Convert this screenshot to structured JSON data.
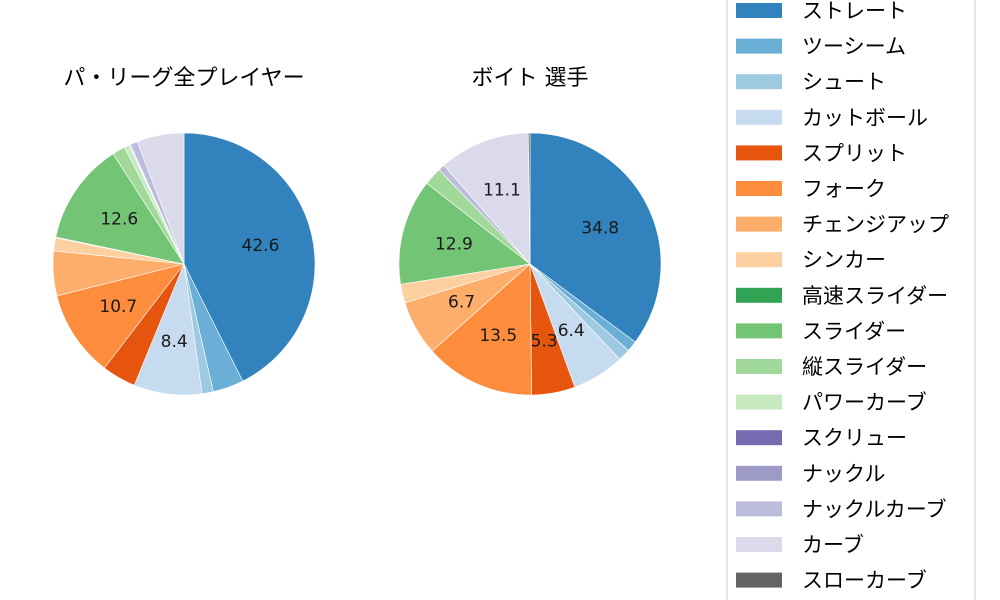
{
  "legend": {
    "items": [
      {
        "name": "ストレート",
        "color": "#3182bd"
      },
      {
        "name": "ツーシーム",
        "color": "#6baed6"
      },
      {
        "name": "シュート",
        "color": "#9ecae1"
      },
      {
        "name": "カットボール",
        "color": "#c6dbef"
      },
      {
        "name": "スプリット",
        "color": "#e6550d"
      },
      {
        "name": "フォーク",
        "color": "#fd8d3c"
      },
      {
        "name": "チェンジアップ",
        "color": "#fdae6b"
      },
      {
        "name": "シンカー",
        "color": "#fdd0a2"
      },
      {
        "name": "高速スライダー",
        "color": "#31a354"
      },
      {
        "name": "スライダー",
        "color": "#74c476"
      },
      {
        "name": "縦スライダー",
        "color": "#a1d99b"
      },
      {
        "name": "パワーカーブ",
        "color": "#c7e9c0"
      },
      {
        "name": "スクリュー",
        "color": "#756bb1"
      },
      {
        "name": "ナックル",
        "color": "#9e9ac8"
      },
      {
        "name": "ナックルカーブ",
        "color": "#bcbddc"
      },
      {
        "name": "カーブ",
        "color": "#dadaeb"
      },
      {
        "name": "スローカーブ",
        "color": "#636363"
      }
    ]
  },
  "chart_data": [
    {
      "type": "pie",
      "title": "パ・リーグ全プレイヤー",
      "start_angle": "top, clockwise",
      "slices": [
        {
          "category": "ストレート",
          "value": 42.6,
          "label": "42.6"
        },
        {
          "category": "ツーシーム",
          "value": 3.8,
          "label": ""
        },
        {
          "category": "シュート",
          "value": 1.4,
          "label": ""
        },
        {
          "category": "カットボール",
          "value": 8.4,
          "label": "8.4"
        },
        {
          "category": "スプリット",
          "value": 4.2,
          "label": ""
        },
        {
          "category": "フォーク",
          "value": 10.7,
          "label": "10.7"
        },
        {
          "category": "チェンジアップ",
          "value": 5.5,
          "label": ""
        },
        {
          "category": "シンカー",
          "value": 1.6,
          "label": ""
        },
        {
          "category": "高速スライダー",
          "value": 0.1,
          "label": ""
        },
        {
          "category": "スライダー",
          "value": 12.6,
          "label": "12.6"
        },
        {
          "category": "縦スライダー",
          "value": 1.6,
          "label": ""
        },
        {
          "category": "パワーカーブ",
          "value": 0.6,
          "label": ""
        },
        {
          "category": "スクリュー",
          "value": 0.1,
          "label": ""
        },
        {
          "category": "ナックル",
          "value": 0.1,
          "label": ""
        },
        {
          "category": "ナックルカーブ",
          "value": 0.9,
          "label": ""
        },
        {
          "category": "カーブ",
          "value": 5.8,
          "label": ""
        },
        {
          "category": "スローカーブ",
          "value": 0.0,
          "label": ""
        }
      ]
    },
    {
      "type": "pie",
      "title": "ボイト 選手",
      "start_angle": "top, clockwise",
      "slices": [
        {
          "category": "ストレート",
          "value": 34.8,
          "label": "34.8"
        },
        {
          "category": "ツーシーム",
          "value": 1.3,
          "label": ""
        },
        {
          "category": "シュート",
          "value": 1.5,
          "label": ""
        },
        {
          "category": "カットボール",
          "value": 6.4,
          "label": "6.4"
        },
        {
          "category": "スプリット",
          "value": 5.3,
          "label": "5.3"
        },
        {
          "category": "フォーク",
          "value": 13.5,
          "label": "13.5"
        },
        {
          "category": "チェンジアップ",
          "value": 6.7,
          "label": "6.7"
        },
        {
          "category": "シンカー",
          "value": 2.3,
          "label": ""
        },
        {
          "category": "高速スライダー",
          "value": 0.0,
          "label": ""
        },
        {
          "category": "スライダー",
          "value": 12.9,
          "label": "12.9"
        },
        {
          "category": "縦スライダー",
          "value": 2.2,
          "label": ""
        },
        {
          "category": "パワーカーブ",
          "value": 0.0,
          "label": ""
        },
        {
          "category": "スクリュー",
          "value": 0.0,
          "label": ""
        },
        {
          "category": "ナックル",
          "value": 0.0,
          "label": ""
        },
        {
          "category": "ナックルカーブ",
          "value": 0.8,
          "label": ""
        },
        {
          "category": "カーブ",
          "value": 11.1,
          "label": "11.1"
        },
        {
          "category": "スローカーブ",
          "value": 0.2,
          "label": ""
        }
      ]
    }
  ]
}
